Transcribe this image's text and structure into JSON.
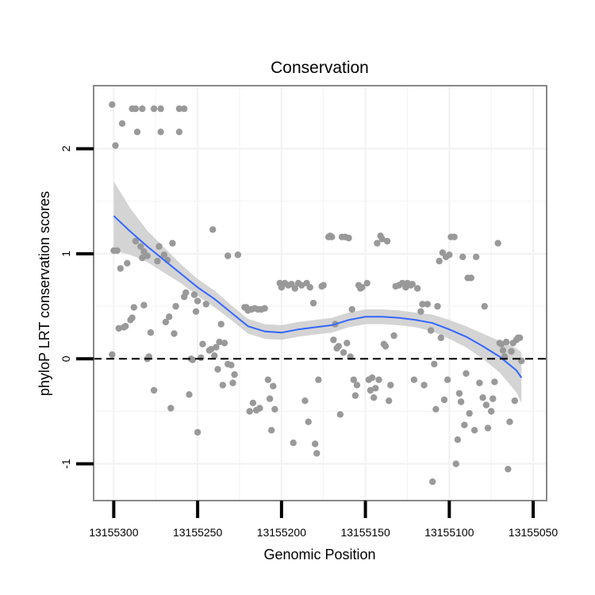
{
  "chart_data": {
    "type": "scatter",
    "title": "Conservation",
    "xlabel": "Genomic Position",
    "ylabel": "phyloP LRT conservation scores",
    "x_reversed": true,
    "xlim": [
      13155312,
      13155042
    ],
    "ylim": [
      -1.35,
      2.6
    ],
    "x_ticks": [
      13155300,
      13155250,
      13155200,
      13155150,
      13155100,
      13155050
    ],
    "x_tick_labels": [
      "13155300",
      "13155250",
      "13155200",
      "13155150",
      "13155100",
      "13155050"
    ],
    "y_ticks": [
      -1,
      0,
      1,
      2
    ],
    "y_tick_labels": [
      "-1",
      "0",
      "1",
      "2"
    ],
    "reference_line": {
      "y": 0,
      "style": "dashed"
    },
    "colors": {
      "points": "#999999",
      "smooth_line": "#3366FF",
      "ribbon": "#CCCCCC",
      "panel_border": "#888888",
      "grid": "#F2F2F2"
    },
    "points": [
      [
        13155301,
        2.42
      ],
      [
        13155299,
        2.03
      ],
      [
        13155300,
        1.03
      ],
      [
        13155298,
        1.03
      ],
      [
        13155301,
        0.04
      ],
      [
        13155295,
        2.24
      ],
      [
        13155296,
        0.86
      ],
      [
        13155292,
        0.91
      ],
      [
        13155297,
        0.29
      ],
      [
        13155294,
        0.3
      ],
      [
        13155293,
        0.31
      ],
      [
        13155290,
        0.37
      ],
      [
        13155289,
        0.39
      ],
      [
        13155289,
        2.38
      ],
      [
        13155287,
        2.38
      ],
      [
        13155286,
        2.16
      ],
      [
        13155283,
        2.38
      ],
      [
        13155288,
        0.49
      ],
      [
        13155287,
        1.12
      ],
      [
        13155284,
        1.07
      ],
      [
        13155283,
        0.96
      ],
      [
        13155282,
        0.51
      ],
      [
        13155282,
        1.02
      ],
      [
        13155280,
        0.98
      ],
      [
        13155280,
        0.0
      ],
      [
        13155278,
        0.25
      ],
      [
        13155279,
        0.02
      ],
      [
        13155276,
        2.38
      ],
      [
        13155276,
        -0.3
      ],
      [
        13155274,
        0.93
      ],
      [
        13155273,
        1.07
      ],
      [
        13155272,
        2.16
      ],
      [
        13155272,
        2.38
      ],
      [
        13155270,
        0.99
      ],
      [
        13155269,
        0.35
      ],
      [
        13155268,
        0.94
      ],
      [
        13155267,
        0.4
      ],
      [
        13155266,
        -0.47
      ],
      [
        13155265,
        1.1
      ],
      [
        13155264,
        0.24
      ],
      [
        13155263,
        0.5
      ],
      [
        13155261,
        2.16
      ],
      [
        13155261,
        2.38
      ],
      [
        13155258,
        2.38
      ],
      [
        13155258,
        0.59
      ],
      [
        13155257,
        0.63
      ],
      [
        13155255,
        -0.34
      ],
      [
        13155254,
        0.0
      ],
      [
        13155253,
        -0.01
      ],
      [
        13155252,
        0.61
      ],
      [
        13155250,
        0.55
      ],
      [
        13155251,
        0.45
      ],
      [
        13155250,
        -0.7
      ],
      [
        13155248,
        0.01
      ],
      [
        13155247,
        0.14
      ],
      [
        13155245,
        0.52
      ],
      [
        13155243,
        0.08
      ],
      [
        13155242,
        0.09
      ],
      [
        13155241,
        1.23
      ],
      [
        13155240,
        0.03
      ],
      [
        13155239,
        0.11
      ],
      [
        13155238,
        -0.1
      ],
      [
        13155237,
        0.16
      ],
      [
        13155236,
        0.33
      ],
      [
        13155235,
        -0.25
      ],
      [
        13155234,
        0.15
      ],
      [
        13155232,
        0.98
      ],
      [
        13155232,
        -0.05
      ],
      [
        13155230,
        -0.06
      ],
      [
        13155229,
        -0.23
      ],
      [
        13155228,
        -0.15
      ],
      [
        13155226,
        0.99
      ],
      [
        13155222,
        0.49
      ],
      [
        13155221,
        0.49
      ],
      [
        13155220,
        0.46
      ],
      [
        13155219,
        -0.5
      ],
      [
        13155218,
        0.47
      ],
      [
        13155217,
        -0.42
      ],
      [
        13155216,
        0.48
      ],
      [
        13155215,
        -0.49
      ],
      [
        13155214,
        0.47
      ],
      [
        13155213,
        -0.47
      ],
      [
        13155212,
        0.47
      ],
      [
        13155210,
        0.48
      ],
      [
        13155208,
        -0.2
      ],
      [
        13155207,
        -0.38
      ],
      [
        13155206,
        -0.68
      ],
      [
        13155205,
        -0.26
      ],
      [
        13155204,
        -0.48
      ],
      [
        13155201,
        0.72
      ],
      [
        13155200,
        0.68
      ],
      [
        13155198,
        0.72
      ],
      [
        13155196,
        0.7
      ],
      [
        13155194,
        0.71
      ],
      [
        13155193,
        -0.8
      ],
      [
        13155192,
        0.67
      ],
      [
        13155190,
        0.72
      ],
      [
        13155188,
        0.7
      ],
      [
        13155186,
        -0.4
      ],
      [
        13155185,
        0.72
      ],
      [
        13155184,
        -0.6
      ],
      [
        13155183,
        0.68
      ],
      [
        13155181,
        0.53
      ],
      [
        13155180,
        -0.81
      ],
      [
        13155179,
        -0.9
      ],
      [
        13155178,
        -0.2
      ],
      [
        13155176,
        0.69
      ],
      [
        13155175,
        0.7
      ],
      [
        13155172,
        1.16
      ],
      [
        13155171,
        1.17
      ],
      [
        13155170,
        1.16
      ],
      [
        13155169,
        0.18
      ],
      [
        13155168,
        0.33
      ],
      [
        13155167,
        0.1
      ],
      [
        13155166,
        0.12
      ],
      [
        13155165,
        -0.53
      ],
      [
        13155164,
        1.16
      ],
      [
        13155163,
        0.06
      ],
      [
        13155162,
        1.16
      ],
      [
        13155161,
        0.15
      ],
      [
        13155160,
        1.15
      ],
      [
        13155159,
        0.02
      ],
      [
        13155158,
        0.47
      ],
      [
        13155157,
        -0.2
      ],
      [
        13155156,
        -0.35
      ],
      [
        13155155,
        -0.25
      ],
      [
        13155154,
        0.7
      ],
      [
        13155153,
        0.67
      ],
      [
        13155152,
        0.68
      ],
      [
        13155149,
        0.72
      ],
      [
        13155148,
        -0.2
      ],
      [
        13155147,
        -0.3
      ],
      [
        13155146,
        -0.18
      ],
      [
        13155145,
        -0.37
      ],
      [
        13155144,
        -0.28
      ],
      [
        13155143,
        1.1
      ],
      [
        13155142,
        -0.2
      ],
      [
        13155141,
        1.17
      ],
      [
        13155140,
        1.14
      ],
      [
        13155139,
        0.14
      ],
      [
        13155138,
        0.12
      ],
      [
        13155137,
        1.12
      ],
      [
        13155136,
        -0.4
      ],
      [
        13155135,
        -0.25
      ],
      [
        13155133,
        0.22
      ],
      [
        13155132,
        0.69
      ],
      [
        13155130,
        0.7
      ],
      [
        13155128,
        0.72
      ],
      [
        13155126,
        0.68
      ],
      [
        13155125,
        0.72
      ],
      [
        13155123,
        0.7
      ],
      [
        13155122,
        0.71
      ],
      [
        13155121,
        -0.2
      ],
      [
        13155119,
        0.67
      ],
      [
        13155117,
        0.45
      ],
      [
        13155116,
        0.52
      ],
      [
        13155115,
        -0.25
      ],
      [
        13155113,
        0.52
      ],
      [
        13155111,
        0.27
      ],
      [
        13155110,
        -1.17
      ],
      [
        13155109,
        -0.05
      ],
      [
        13155108,
        -0.48
      ],
      [
        13155107,
        0.5
      ],
      [
        13155106,
        0.93
      ],
      [
        13155105,
        0.2
      ],
      [
        13155104,
        1.01
      ],
      [
        13155103,
        -0.39
      ],
      [
        13155102,
        0.97
      ],
      [
        13155101,
        -0.2
      ],
      [
        13155100,
        0.99
      ],
      [
        13155099,
        1.16
      ],
      [
        13155097,
        1.16
      ],
      [
        13155096,
        -1.0
      ],
      [
        13155095,
        -0.77
      ],
      [
        13155094,
        -0.33
      ],
      [
        13155093,
        -0.41
      ],
      [
        13155092,
        0.97
      ],
      [
        13155091,
        -0.63
      ],
      [
        13155090,
        -0.14
      ],
      [
        13155089,
        0.77
      ],
      [
        13155088,
        -0.52
      ],
      [
        13155087,
        0.77
      ],
      [
        13155085,
        -0.68
      ],
      [
        13155084,
        0.97
      ],
      [
        13155082,
        -0.23
      ],
      [
        13155080,
        -0.37
      ],
      [
        13155079,
        0.5
      ],
      [
        13155078,
        -0.44
      ],
      [
        13155077,
        -0.66
      ],
      [
        13155075,
        -0.5
      ],
      [
        13155074,
        -0.38
      ],
      [
        13155073,
        -0.22
      ],
      [
        13155071,
        1.1
      ],
      [
        13155070,
        0.15
      ],
      [
        13155069,
        0.14
      ],
      [
        13155068,
        0.08
      ],
      [
        13155067,
        0.02
      ],
      [
        13155066,
        0.16
      ],
      [
        13155065,
        -1.05
      ],
      [
        13155064,
        -0.6
      ],
      [
        13155063,
        0.07
      ],
      [
        13155062,
        0.15
      ],
      [
        13155061,
        -0.4
      ],
      [
        13155060,
        0.18
      ],
      [
        13155059,
        0.2
      ],
      [
        13155058,
        0.2
      ],
      [
        13155057,
        -0.02
      ]
    ],
    "smooth_fit": {
      "x": [
        13155300,
        13155290,
        13155280,
        13155270,
        13155260,
        13155250,
        13155240,
        13155230,
        13155220,
        13155210,
        13155200,
        13155190,
        13155180,
        13155170,
        13155160,
        13155150,
        13155140,
        13155130,
        13155120,
        13155110,
        13155100,
        13155090,
        13155080,
        13155070,
        13155060,
        13155057
      ],
      "y": [
        1.36,
        1.21,
        1.07,
        0.94,
        0.81,
        0.68,
        0.57,
        0.44,
        0.31,
        0.26,
        0.25,
        0.28,
        0.3,
        0.32,
        0.37,
        0.4,
        0.4,
        0.39,
        0.37,
        0.34,
        0.28,
        0.21,
        0.12,
        0.02,
        -0.11,
        -0.18
      ],
      "lower": [
        1.03,
        0.99,
        0.92,
        0.82,
        0.72,
        0.6,
        0.49,
        0.37,
        0.24,
        0.19,
        0.18,
        0.21,
        0.23,
        0.25,
        0.3,
        0.33,
        0.33,
        0.32,
        0.3,
        0.26,
        0.19,
        0.11,
        0.0,
        -0.13,
        -0.32,
        -0.42
      ],
      "upper": [
        1.69,
        1.43,
        1.22,
        1.06,
        0.9,
        0.76,
        0.65,
        0.51,
        0.38,
        0.33,
        0.32,
        0.35,
        0.37,
        0.39,
        0.44,
        0.47,
        0.47,
        0.46,
        0.44,
        0.42,
        0.37,
        0.31,
        0.24,
        0.17,
        0.1,
        0.06
      ]
    }
  }
}
